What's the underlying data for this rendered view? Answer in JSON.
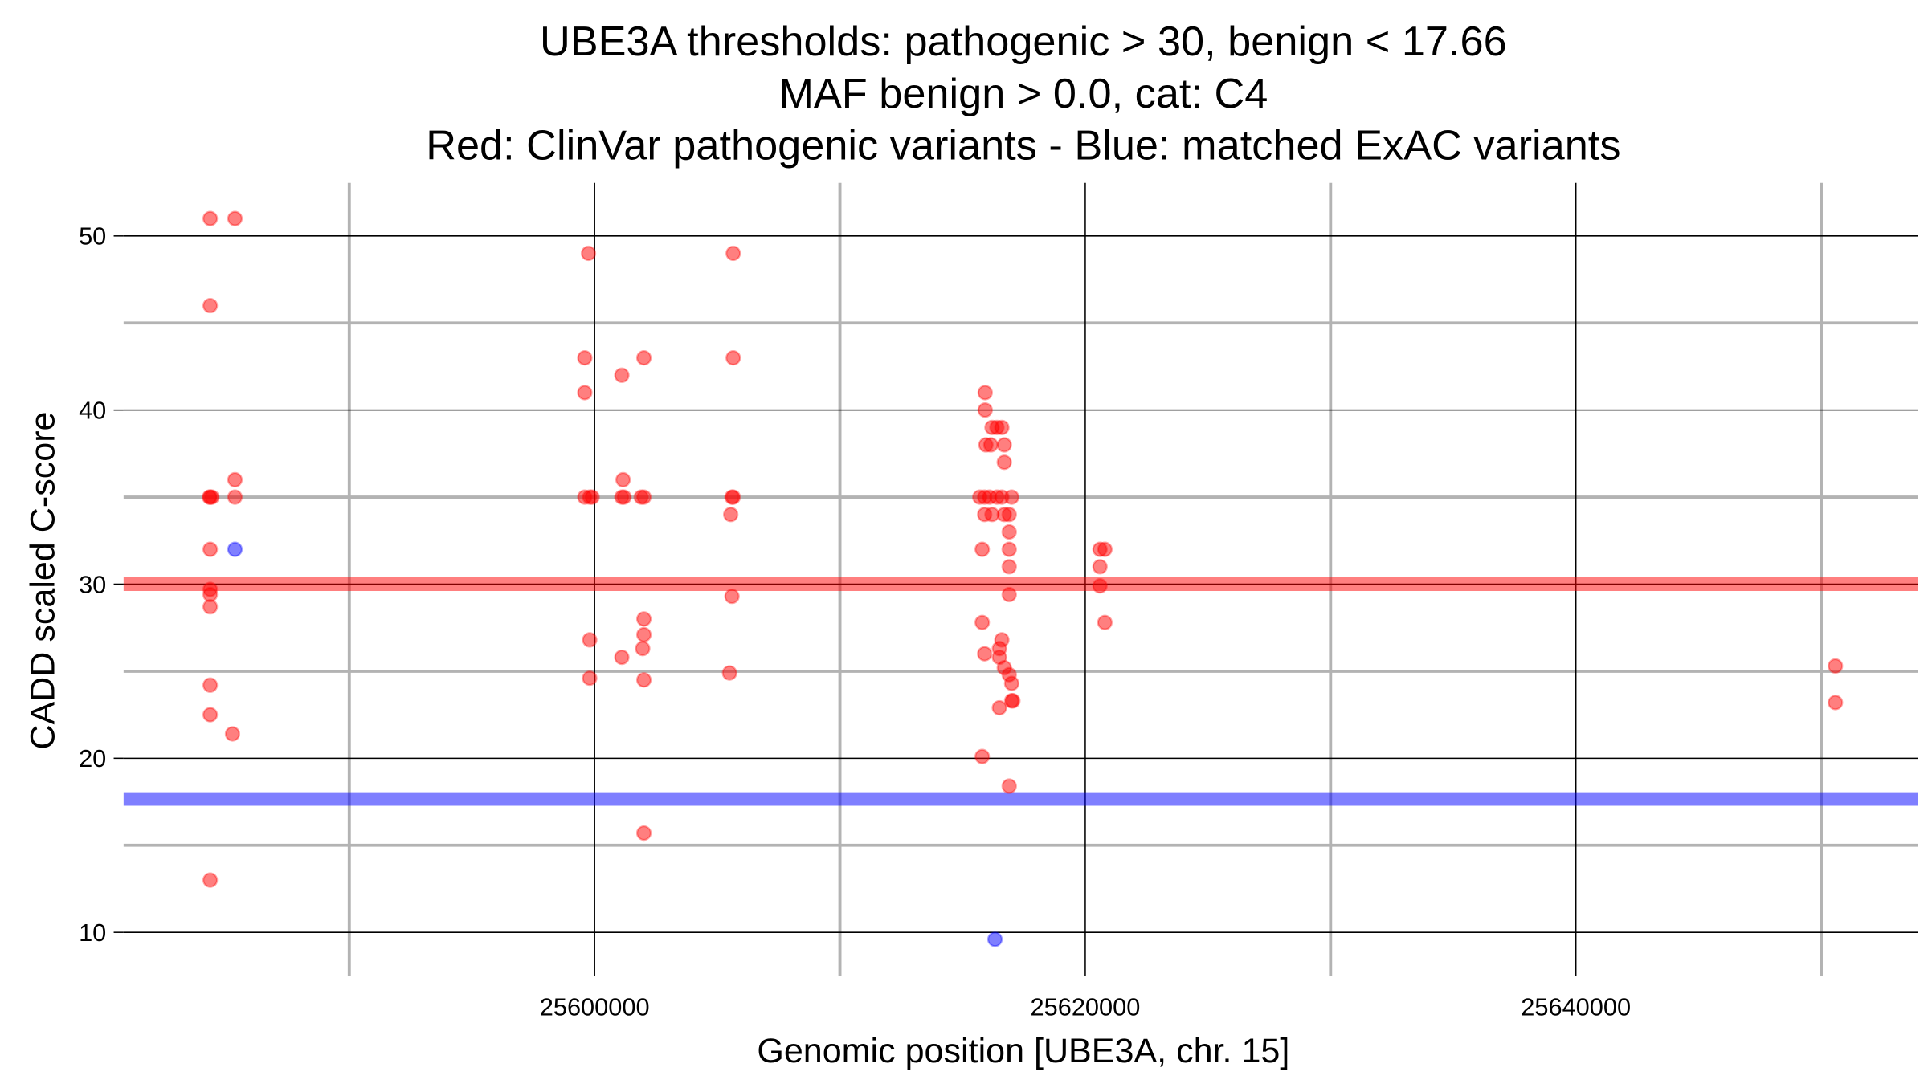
{
  "chart_data": {
    "type": "scatter",
    "title_lines": [
      "UBE3A thresholds: pathogenic > 30, benign < 17.66",
      "MAF benign > 0.0, cat: C4",
      "Red: ClinVar pathogenic variants - Blue: matched ExAC variants"
    ],
    "xlabel": "Genomic position [UBE3A, chr. 15]",
    "ylabel": "CADD scaled C-score",
    "xlim": [
      25580800,
      25653950
    ],
    "ylim": [
      7.5,
      53.05
    ],
    "x_major_ticks": [
      25600000,
      25620000,
      25640000
    ],
    "x_tick_labels": [
      "25600000",
      "25620000",
      "25640000"
    ],
    "x_minor_ticks": [
      25590000,
      25610000,
      25630000,
      25650000
    ],
    "y_major_ticks": [
      10,
      20,
      30,
      40,
      50
    ],
    "y_tick_labels": [
      "10",
      "20",
      "30",
      "40",
      "50"
    ],
    "y_minor_ticks": [
      15,
      25,
      35,
      45
    ],
    "grid": true,
    "thresholds": [
      {
        "name": "pathogenic",
        "value": 30,
        "color": "#ff0000"
      },
      {
        "name": "benign",
        "value": 17.66,
        "color": "#0000ff"
      }
    ],
    "series": [
      {
        "name": "ClinVar pathogenic variants",
        "color": "#ff0000",
        "points": [
          [
            25584330,
            51
          ],
          [
            25585340,
            51
          ],
          [
            25584330,
            46
          ],
          [
            25584330,
            35
          ],
          [
            25584300,
            35
          ],
          [
            25584400,
            35
          ],
          [
            25585340,
            36
          ],
          [
            25585340,
            35
          ],
          [
            25584330,
            32
          ],
          [
            25584330,
            29.7
          ],
          [
            25584330,
            29.4
          ],
          [
            25584330,
            28.7
          ],
          [
            25584330,
            24.2
          ],
          [
            25584330,
            22.5
          ],
          [
            25585240,
            21.4
          ],
          [
            25584330,
            13
          ],
          [
            25599750,
            49
          ],
          [
            25599600,
            43
          ],
          [
            25599600,
            41
          ],
          [
            25601110,
            42
          ],
          [
            25602010,
            43
          ],
          [
            25599600,
            35
          ],
          [
            25599800,
            35
          ],
          [
            25599900,
            35
          ],
          [
            25601110,
            35
          ],
          [
            25601200,
            35
          ],
          [
            25601900,
            35
          ],
          [
            25602010,
            35
          ],
          [
            25601160,
            36
          ],
          [
            25602010,
            28
          ],
          [
            25602010,
            27.1
          ],
          [
            25601960,
            26.3
          ],
          [
            25599800,
            26.8
          ],
          [
            25601110,
            25.8
          ],
          [
            25599800,
            24.6
          ],
          [
            25602010,
            24.5
          ],
          [
            25602010,
            15.7
          ],
          [
            25605650,
            49
          ],
          [
            25605650,
            43
          ],
          [
            25605650,
            35
          ],
          [
            25605600,
            35
          ],
          [
            25605550,
            34
          ],
          [
            25605600,
            29.3
          ],
          [
            25605500,
            24.9
          ],
          [
            25615920,
            41
          ],
          [
            25615920,
            40
          ],
          [
            25616200,
            39
          ],
          [
            25616400,
            39
          ],
          [
            25616600,
            39
          ],
          [
            25615950,
            38
          ],
          [
            25616150,
            38
          ],
          [
            25616700,
            38
          ],
          [
            25616700,
            37
          ],
          [
            25615700,
            35
          ],
          [
            25615900,
            35
          ],
          [
            25616100,
            35
          ],
          [
            25616400,
            35
          ],
          [
            25616600,
            35
          ],
          [
            25617000,
            35
          ],
          [
            25615900,
            34
          ],
          [
            25616200,
            34
          ],
          [
            25616700,
            34
          ],
          [
            25616900,
            34
          ],
          [
            25616900,
            33
          ],
          [
            25615800,
            32
          ],
          [
            25616900,
            32
          ],
          [
            25616900,
            31
          ],
          [
            25616900,
            29.4
          ],
          [
            25615800,
            27.8
          ],
          [
            25616600,
            26.8
          ],
          [
            25616500,
            26.3
          ],
          [
            25615900,
            26
          ],
          [
            25616500,
            25.8
          ],
          [
            25616700,
            25.2
          ],
          [
            25616900,
            24.8
          ],
          [
            25617000,
            24.3
          ],
          [
            25617000,
            23.3
          ],
          [
            25617050,
            23.3
          ],
          [
            25616500,
            22.9
          ],
          [
            25615800,
            20.1
          ],
          [
            25616900,
            18.4
          ],
          [
            25620600,
            32
          ],
          [
            25620800,
            32
          ],
          [
            25620600,
            31
          ],
          [
            25620600,
            29.9
          ],
          [
            25620800,
            27.8
          ],
          [
            25650580,
            25.3
          ],
          [
            25650580,
            23.2
          ]
        ]
      },
      {
        "name": "matched ExAC variants",
        "color": "#0000ff",
        "points": [
          [
            25585340,
            32
          ],
          [
            25616320,
            9.6
          ]
        ]
      }
    ]
  }
}
